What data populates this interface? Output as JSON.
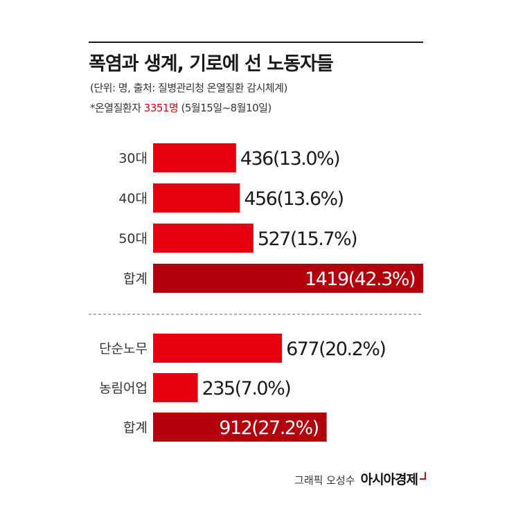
{
  "title": "폭염과 생계, 기로에 선 노동자들",
  "subtitle": "(단위: 명, 출처: 질병관리청 온열질환 감시체계)",
  "note": {
    "prefix": "*온열질환자 ",
    "highlight": "3351명",
    "suffix": " (5월15일~8월10일)"
  },
  "credit": {
    "byline": "그래픽 오성수",
    "brand": "아시아경제"
  },
  "colors": {
    "bar": "#e6000f",
    "total": "#b3000c",
    "highlight": "#d7000f"
  },
  "chart_data": [
    {
      "type": "bar",
      "orientation": "horizontal",
      "categories": [
        "30대",
        "40대",
        "50대",
        "합계"
      ],
      "values": [
        436,
        456,
        527,
        1419
      ],
      "labels": [
        "436(13.0%)",
        "456(13.6%)",
        "527(15.7%)",
        "1419(42.3%)"
      ],
      "total_index": 3
    },
    {
      "type": "bar",
      "orientation": "horizontal",
      "categories": [
        "단순노무",
        "농림어업",
        "합계"
      ],
      "values": [
        677,
        235,
        912
      ],
      "labels": [
        "677(20.2%)",
        "235(7.0%)",
        "912(27.2%)"
      ],
      "total_index": 2
    }
  ]
}
